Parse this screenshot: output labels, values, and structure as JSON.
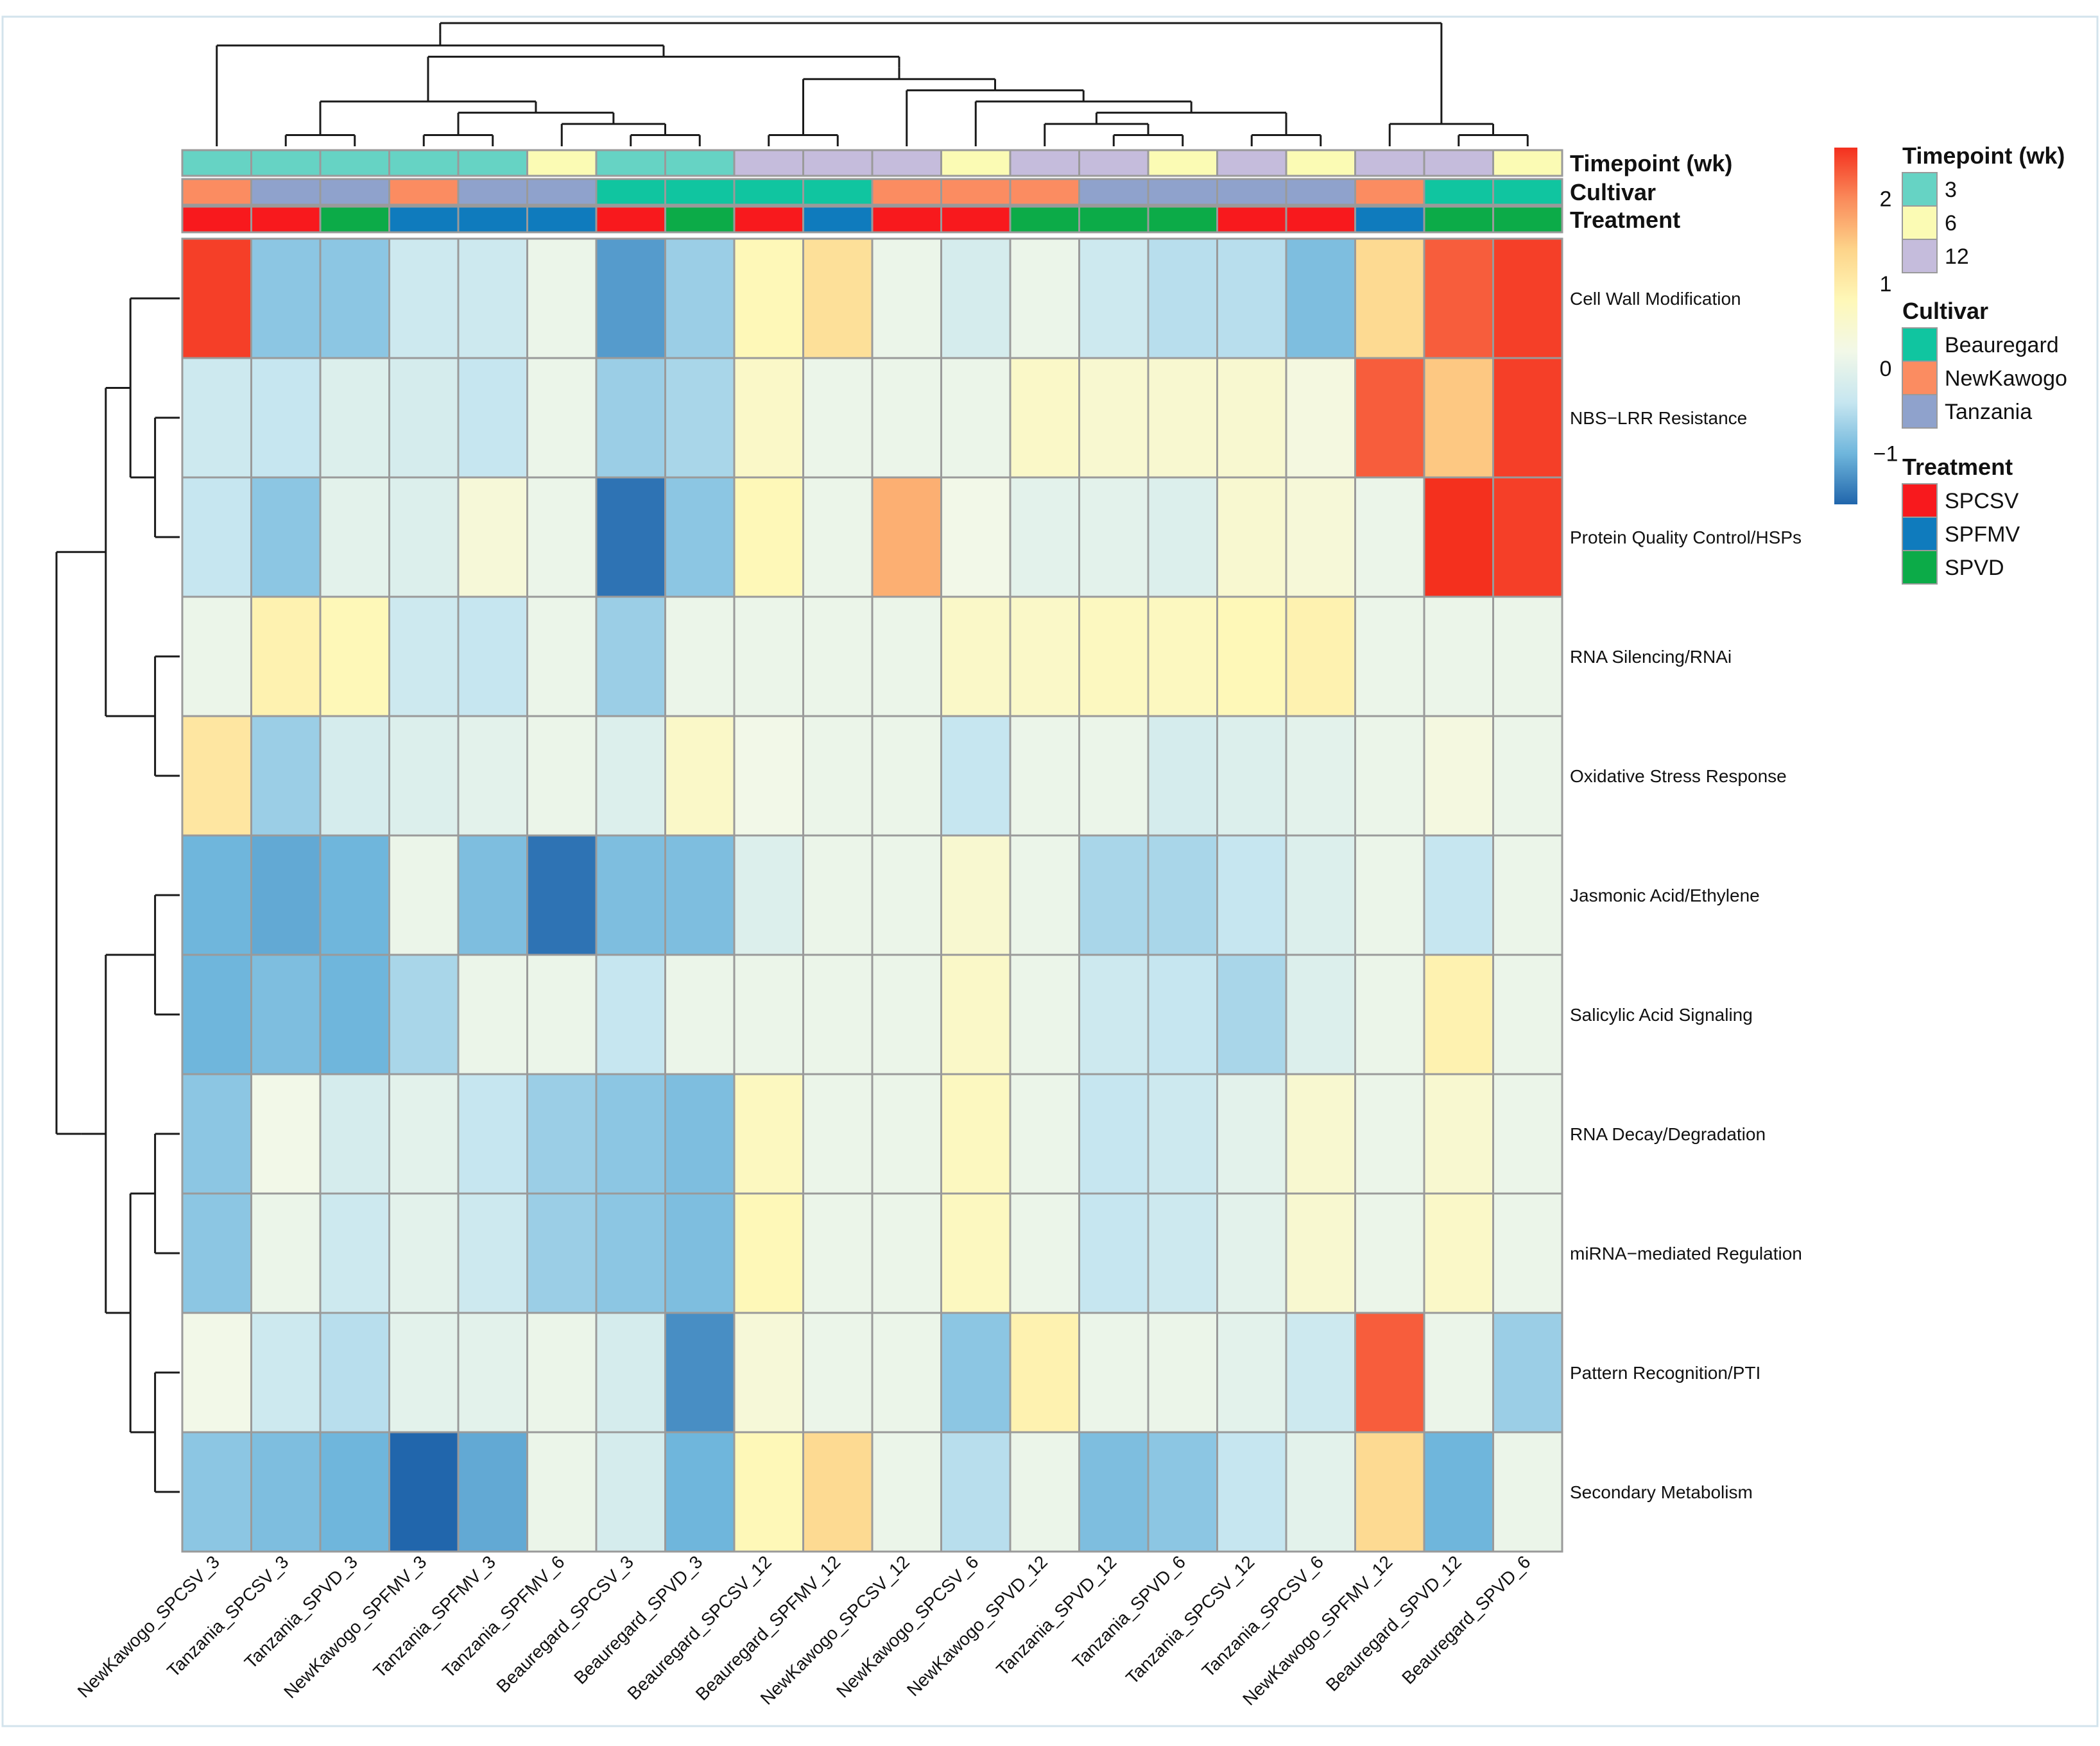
{
  "chart_data": {
    "type": "heatmap",
    "title": "",
    "columns": [
      "NewKawogo_SPCSV_3",
      "Tanzania_SPCSV_3",
      "Tanzania_SPVD_3",
      "NewKawogo_SPFMV_3",
      "Tanzania_SPFMV_3",
      "Tanzania_SPFMV_6",
      "Beauregard_SPCSV_3",
      "Beauregard_SPVD_3",
      "Beauregard_SPCSV_12",
      "Beauregard_SPFMV_12",
      "NewKawogo_SPCSV_12",
      "NewKawogo_SPCSV_6",
      "NewKawogo_SPVD_12",
      "Tanzania_SPVD_12",
      "Tanzania_SPVD_6",
      "Tanzania_SPCSV_12",
      "Tanzania_SPCSV_6",
      "NewKawogo_SPFMV_12",
      "Beauregard_SPVD_12",
      "Beauregard_SPVD_6"
    ],
    "rows": [
      "Cell Wall Modification",
      "NBS−LRR Resistance",
      "Protein Quality Control/HSPs",
      "RNA Silencing/RNAi",
      "Oxidative Stress Response",
      "Jasmonic Acid/Ethylene",
      "Salicylic Acid Signaling",
      "RNA Decay/Degradation",
      "miRNA−mediated Regulation",
      "Pattern Recognition/PTI",
      "Secondary Metabolism"
    ],
    "values": [
      [
        2.5,
        -0.8,
        -0.8,
        -0.3,
        -0.3,
        0.1,
        -1.2,
        -0.7,
        0.8,
        1.2,
        0.1,
        -0.2,
        0.1,
        -0.3,
        -0.5,
        -0.5,
        -0.9,
        1.3,
        2.3,
        2.5
      ],
      [
        -0.3,
        -0.4,
        -0.1,
        -0.2,
        -0.4,
        0.1,
        -0.7,
        -0.6,
        0.6,
        0.1,
        0.1,
        0.1,
        0.6,
        0.5,
        0.5,
        0.5,
        0.3,
        2.3,
        1.5,
        2.5
      ],
      [
        -0.4,
        -0.8,
        0.0,
        -0.1,
        0.4,
        0.1,
        -1.5,
        -0.8,
        0.8,
        0.1,
        1.7,
        0.2,
        0.0,
        0.0,
        -0.1,
        0.5,
        0.4,
        0.1,
        2.6,
        2.5
      ],
      [
        0.1,
        0.9,
        0.8,
        -0.3,
        -0.4,
        0.1,
        -0.7,
        0.1,
        0.1,
        0.1,
        0.1,
        0.6,
        0.6,
        0.7,
        0.7,
        0.8,
        0.9,
        0.1,
        0.1,
        0.1
      ],
      [
        1.1,
        -0.7,
        -0.2,
        -0.1,
        0.0,
        0.1,
        -0.1,
        0.6,
        0.2,
        0.1,
        0.1,
        -0.4,
        0.1,
        0.1,
        -0.2,
        -0.1,
        0.0,
        0.1,
        0.3,
        0.1
      ],
      [
        -1.0,
        -1.1,
        -1.0,
        0.1,
        -0.9,
        -1.5,
        -0.9,
        -0.9,
        -0.1,
        0.1,
        0.1,
        0.5,
        0.1,
        -0.6,
        -0.6,
        -0.4,
        -0.1,
        0.1,
        -0.4,
        0.1
      ],
      [
        -1.0,
        -0.9,
        -1.0,
        -0.6,
        0.1,
        0.1,
        -0.4,
        0.1,
        0.1,
        0.1,
        0.1,
        0.6,
        0.1,
        -0.3,
        -0.4,
        -0.6,
        -0.1,
        0.1,
        0.9,
        0.1
      ],
      [
        -0.8,
        0.2,
        -0.2,
        0.0,
        -0.4,
        -0.7,
        -0.8,
        -0.9,
        0.7,
        0.1,
        0.1,
        0.7,
        0.1,
        -0.4,
        -0.3,
        0.0,
        0.5,
        0.1,
        0.5,
        0.1
      ],
      [
        -0.8,
        0.1,
        -0.3,
        0.0,
        -0.3,
        -0.7,
        -0.8,
        -0.9,
        0.8,
        0.1,
        0.1,
        0.7,
        0.1,
        -0.4,
        -0.3,
        0.0,
        0.5,
        0.1,
        0.6,
        0.1
      ],
      [
        0.2,
        -0.3,
        -0.5,
        0.0,
        0.0,
        0.1,
        -0.2,
        -1.3,
        0.4,
        0.1,
        0.1,
        -0.8,
        0.9,
        0.1,
        0.1,
        0.0,
        -0.3,
        2.3,
        0.1,
        -0.7
      ],
      [
        -0.8,
        -0.9,
        -1.0,
        -1.9,
        -1.1,
        0.1,
        -0.2,
        -1.0,
        0.8,
        1.3,
        0.1,
        -0.5,
        0.1,
        -0.9,
        -0.8,
        -0.4,
        0.0,
        1.3,
        -1.0,
        0.1
      ]
    ],
    "color_scale": {
      "min": -1.6,
      "max": 2.6,
      "ticks": [
        -1,
        0,
        1,
        2
      ],
      "tick_labels": [
        "−1",
        "0",
        "1",
        "2"
      ],
      "colors": [
        "#2166ac",
        "#6fb6dc",
        "#c6e6f0",
        "#f2f8e8",
        "#fef8b8",
        "#fdd48a",
        "#fa8a5a",
        "#f4301e"
      ]
    },
    "annotations": [
      {
        "name": "Timepoint (wk)",
        "values": [
          "3",
          "3",
          "3",
          "3",
          "3",
          "6",
          "3",
          "3",
          "12",
          "12",
          "12",
          "6",
          "12",
          "12",
          "6",
          "12",
          "6",
          "12",
          "12",
          "6"
        ]
      },
      {
        "name": "Cultivar",
        "values": [
          "NewKawogo",
          "Tanzania",
          "Tanzania",
          "NewKawogo",
          "Tanzania",
          "Tanzania",
          "Beauregard",
          "Beauregard",
          "Beauregard",
          "Beauregard",
          "NewKawogo",
          "NewKawogo",
          "NewKawogo",
          "Tanzania",
          "Tanzania",
          "Tanzania",
          "Tanzania",
          "NewKawogo",
          "Beauregard",
          "Beauregard"
        ]
      },
      {
        "name": "Treatment",
        "values": [
          "SPCSV",
          "SPCSV",
          "SPVD",
          "SPFMV",
          "SPFMV",
          "SPFMV",
          "SPCSV",
          "SPVD",
          "SPCSV",
          "SPFMV",
          "SPCSV",
          "SPCSV",
          "SPVD",
          "SPVD",
          "SPVD",
          "SPCSV",
          "SPCSV",
          "SPFMV",
          "SPVD",
          "SPVD"
        ]
      }
    ],
    "legend": [
      {
        "title": "Timepoint (wk)",
        "entries": [
          {
            "label": "3",
            "color": "#66d3c4"
          },
          {
            "label": "6",
            "color": "#fbfbb4"
          },
          {
            "label": "12",
            "color": "#c5bcdc"
          }
        ]
      },
      {
        "title": "Cultivar",
        "entries": [
          {
            "label": "Beauregard",
            "color": "#10c5a0"
          },
          {
            "label": "NewKawogo",
            "color": "#fb8c61"
          },
          {
            "label": "Tanzania",
            "color": "#8fa2cc"
          }
        ]
      },
      {
        "title": "Treatment",
        "entries": [
          {
            "label": "SPCSV",
            "color": "#f8191d"
          },
          {
            "label": "SPFMV",
            "color": "#0f7bbd"
          },
          {
            "label": "SPVD",
            "color": "#0cab48"
          }
        ]
      }
    ],
    "legend_position": "right",
    "grid": false
  }
}
